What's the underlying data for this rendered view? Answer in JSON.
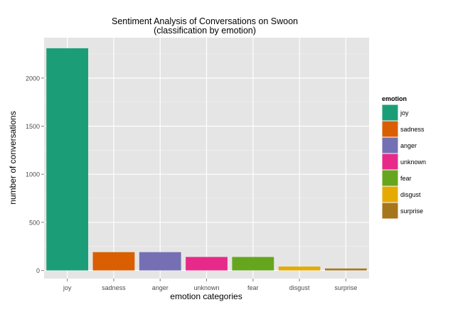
{
  "chart_data": {
    "type": "bar",
    "title": "Sentiment Analysis of Conversations on Swoon",
    "subtitle": "(classification by emotion)",
    "xlabel": "emotion categories",
    "ylabel": "number of conversations",
    "categories": [
      "joy",
      "sadness",
      "anger",
      "unknown",
      "fear",
      "disgust",
      "surprise"
    ],
    "values": [
      2310,
      190,
      190,
      140,
      140,
      40,
      20
    ],
    "colors": [
      "#1b9e77",
      "#d95f02",
      "#7570b3",
      "#e7298a",
      "#66a61e",
      "#e6ab02",
      "#a6761d"
    ],
    "ylim": [
      -85,
      2420
    ],
    "yticks": [
      0,
      500,
      1000,
      1500,
      2000
    ],
    "grid": true,
    "legend": {
      "title": "emotion",
      "placement": "right",
      "entries": [
        "joy",
        "sadness",
        "anger",
        "unknown",
        "fear",
        "disgust",
        "surprise"
      ]
    }
  }
}
